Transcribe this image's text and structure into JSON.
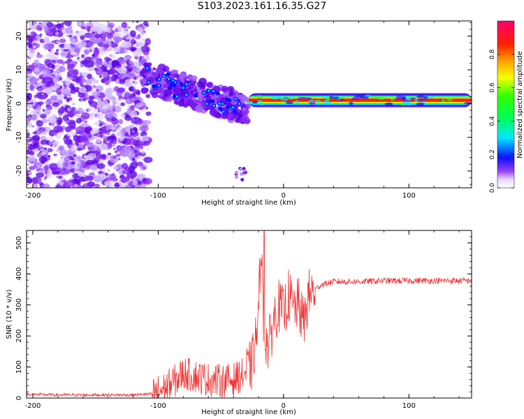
{
  "title": "S103.2023.161.16.35.G27",
  "colorbar_label": "Normalized spectral amplitude",
  "colorbar_ticks": [
    "0.0",
    "0.2",
    "0.4",
    "0.6",
    "0.8"
  ],
  "chart_data": [
    {
      "type": "heatmap",
      "xlabel": "Height of straight line (km)",
      "ylabel": "Frequency (Hz)",
      "xlim": [
        -205,
        150
      ],
      "ylim": [
        -25,
        24.5
      ],
      "xticks": [
        -200,
        -100,
        0,
        100
      ],
      "yticks": [
        20,
        10,
        0,
        -10,
        -20
      ],
      "colormap": "rainbow (white to violet to blue to cyan to green to yellow to red)",
      "colorbar_range": [
        0,
        1
      ],
      "regions": [
        {
          "x": [
            -205,
            -107
          ],
          "freq": [
            -25,
            24.5
          ],
          "amplitude": 0.05,
          "note": "scattered low-amplitude noise"
        },
        {
          "x": [
            -112,
            -28
          ],
          "freq": [
            -8,
            10
          ],
          "amplitude": 0.15,
          "note": "dispersed descending signal"
        },
        {
          "x": [
            -28,
            150
          ],
          "freq": [
            0,
            2
          ],
          "amplitude": 0.95,
          "note": "strong narrow band near 1 Hz"
        }
      ]
    },
    {
      "type": "line",
      "xlabel": "Height of straight line (km)",
      "ylabel": "SNR (10 * v/v)",
      "xlim": [
        -205,
        150
      ],
      "ylim": [
        0,
        540
      ],
      "xticks": [
        -200,
        -100,
        0,
        100
      ],
      "yticks": [
        0,
        100,
        200,
        300,
        400,
        500
      ],
      "color": "#ee3333",
      "series": [
        {
          "x": [
            -205,
            -180,
            -150,
            -120,
            -105,
            -95,
            -85,
            -80,
            -70,
            -60,
            -50,
            -40,
            -30,
            -25,
            -20,
            -18,
            -16,
            -12,
            -8,
            -4,
            0,
            4,
            8,
            12,
            16,
            20,
            25,
            30,
            40,
            50,
            60,
            80,
            100,
            120,
            150
          ],
          "values": [
            12,
            10,
            10,
            10,
            13,
            30,
            60,
            80,
            70,
            60,
            55,
            60,
            80,
            110,
            250,
            540,
            220,
            160,
            250,
            300,
            270,
            330,
            290,
            300,
            240,
            330,
            350,
            365,
            375,
            375,
            375,
            378,
            378,
            378,
            378
          ]
        }
      ]
    }
  ]
}
